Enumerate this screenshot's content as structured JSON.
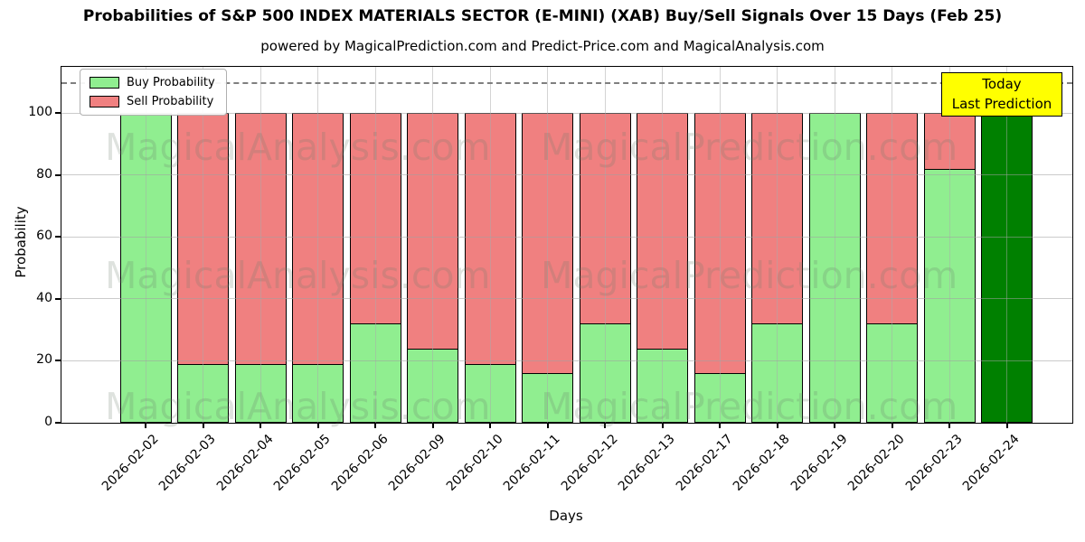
{
  "chart_data": {
    "type": "bar",
    "stacked": true,
    "title": "Probabilities of S&P 500 INDEX MATERIALS SECTOR (E-MINI) (XAB) Buy/Sell Signals Over 15 Days (Feb 25)",
    "subtitle": "powered by MagicalPrediction.com and Predict-Price.com and MagicalAnalysis.com",
    "xlabel": "Days",
    "ylabel": "Probability",
    "ylim": [
      0,
      115
    ],
    "yticks": [
      0,
      20,
      40,
      60,
      80,
      100
    ],
    "grid": true,
    "legend_position": "upper left",
    "dashed_line_y": 110,
    "categories": [
      "2026-02-02",
      "2026-02-03",
      "2026-02-04",
      "2026-02-05",
      "2026-02-06",
      "2026-02-09",
      "2026-02-10",
      "2026-02-11",
      "2026-02-12",
      "2026-02-13",
      "2026-02-17",
      "2026-02-18",
      "2026-02-19",
      "2026-02-20",
      "2026-02-23",
      "2026-02-24"
    ],
    "series": [
      {
        "name": "Buy Probability",
        "color": "#90EE90",
        "values": [
          100,
          19,
          19,
          19,
          32,
          24,
          19,
          16,
          32,
          24,
          16,
          32,
          100,
          32,
          82,
          100
        ]
      },
      {
        "name": "Sell Probability",
        "color": "#F08080",
        "values": [
          0,
          81,
          81,
          81,
          68,
          76,
          81,
          84,
          68,
          76,
          84,
          68,
          0,
          68,
          18,
          0
        ]
      }
    ],
    "last_bar": {
      "category": "2026-02-24",
      "color": "#008000",
      "value": 100
    }
  },
  "annotation": {
    "line1": "Today",
    "line2": "Last Prediction",
    "bg_color": "#ffff00"
  },
  "watermarks": [
    "MagicalAnalysis.com",
    "MagicalPrediction.com"
  ]
}
